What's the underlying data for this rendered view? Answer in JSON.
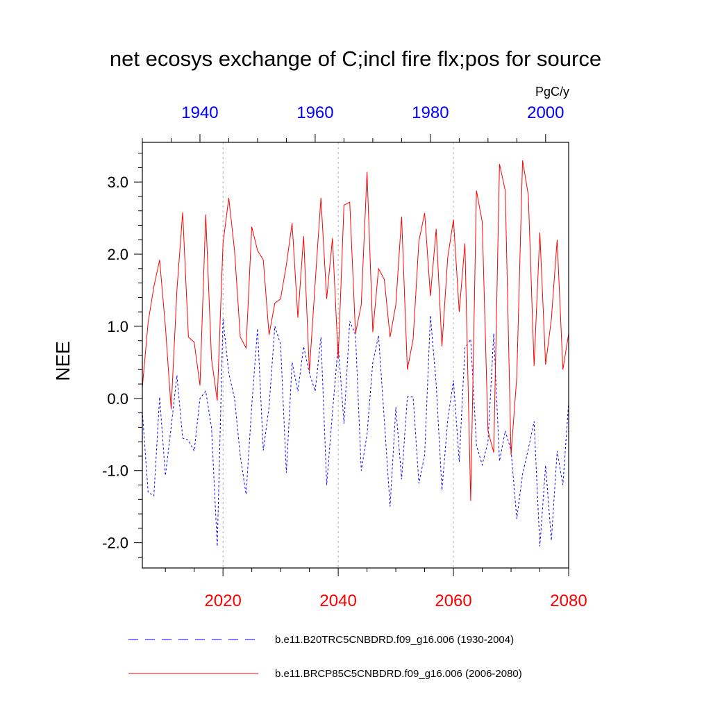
{
  "chart_data": {
    "type": "line",
    "title": "net ecosys exchange of C;incl fire flx;pos for source",
    "units": "PgC/y",
    "ylabel": "NEE",
    "ylim": [
      -2.35,
      3.55
    ],
    "yticks": [
      "3.0",
      "2.0",
      "1.0",
      "0.0",
      "-1.0",
      "-2.0"
    ],
    "ytick_values": [
      3,
      2,
      1,
      0,
      -1,
      -2
    ],
    "grid": "dotted vertical lines at bottom-axis ticks",
    "bottom_axis": {
      "range": [
        2006,
        2080
      ],
      "ticks": [
        "2020",
        "2040",
        "2060",
        "2080"
      ],
      "tick_values": [
        2020,
        2040,
        2060,
        2080
      ],
      "color": "#ff0000"
    },
    "top_axis": {
      "range": [
        1930,
        2004
      ],
      "ticks": [
        "1940",
        "1960",
        "1980",
        "2000"
      ],
      "tick_values": [
        1940,
        1960,
        1980,
        2000
      ],
      "color": "#0000ff"
    },
    "series": [
      {
        "name": "b.e11.B20TRC5CNBDRD.f09_g16.006 (1930-2004)",
        "axis": "top",
        "color": "#0000ff",
        "dash": "dashed",
        "x": [
          1930,
          1931,
          1932,
          1933,
          1934,
          1935,
          1936,
          1937,
          1938,
          1939,
          1940,
          1941,
          1942,
          1943,
          1944,
          1945,
          1946,
          1947,
          1948,
          1949,
          1950,
          1951,
          1952,
          1953,
          1954,
          1955,
          1956,
          1957,
          1958,
          1959,
          1960,
          1961,
          1962,
          1963,
          1964,
          1965,
          1966,
          1967,
          1968,
          1969,
          1970,
          1971,
          1972,
          1973,
          1974,
          1975,
          1976,
          1977,
          1978,
          1979,
          1980,
          1981,
          1982,
          1983,
          1984,
          1985,
          1986,
          1987,
          1988,
          1989,
          1990,
          1991,
          1992,
          1993,
          1994,
          1995,
          1996,
          1997,
          1998,
          1999,
          2000,
          2001,
          2002,
          2003,
          2004
        ],
        "values": [
          -0.18,
          -1.3,
          -1.35,
          0.02,
          -1.07,
          -0.4,
          0.32,
          -0.55,
          -0.58,
          -0.73,
          0.0,
          0.1,
          -0.4,
          -2.05,
          1.1,
          0.35,
          0.0,
          -0.8,
          -1.33,
          -0.1,
          0.97,
          -0.72,
          -0.12,
          1.0,
          0.75,
          -1.03,
          0.5,
          0.1,
          0.72,
          0.35,
          0.1,
          0.85,
          -1.2,
          -0.2,
          0.75,
          -0.35,
          1.07,
          0.88,
          -1.0,
          -0.5,
          0.5,
          0.87,
          -0.3,
          -1.5,
          -0.12,
          -1.12,
          0.02,
          0.02,
          -1.18,
          -0.78,
          1.15,
          0.2,
          -1.27,
          -0.3,
          0.25,
          -0.88,
          0.7,
          0.82,
          -0.65,
          -0.92,
          -0.6,
          0.9,
          -0.87,
          -0.45,
          -0.72,
          -1.67,
          -1.05,
          -0.7,
          -0.32,
          -2.05,
          -0.93,
          -1.97,
          -0.73,
          -1.2,
          -0.05
        ]
      },
      {
        "name": "b.e11.BRCP85C5CNBDRD.f09_g16.006 (2006-2080)",
        "axis": "bottom",
        "color": "#ff0000",
        "dash": "solid",
        "x": [
          2006,
          2007,
          2008,
          2009,
          2010,
          2011,
          2012,
          2013,
          2014,
          2015,
          2016,
          2017,
          2018,
          2019,
          2020,
          2021,
          2022,
          2023,
          2024,
          2025,
          2026,
          2027,
          2028,
          2029,
          2030,
          2031,
          2032,
          2033,
          2034,
          2035,
          2036,
          2037,
          2038,
          2039,
          2040,
          2041,
          2042,
          2043,
          2044,
          2045,
          2046,
          2047,
          2048,
          2049,
          2050,
          2051,
          2052,
          2053,
          2054,
          2055,
          2056,
          2057,
          2058,
          2059,
          2060,
          2061,
          2062,
          2063,
          2064,
          2065,
          2066,
          2067,
          2068,
          2069,
          2070,
          2071,
          2072,
          2073,
          2074,
          2075,
          2076,
          2077,
          2078,
          2079,
          2080
        ],
        "values": [
          0.15,
          1.05,
          1.55,
          1.92,
          1.0,
          -0.15,
          1.5,
          2.58,
          0.85,
          0.78,
          0.18,
          2.55,
          0.55,
          -0.03,
          2.15,
          2.78,
          2.05,
          0.85,
          0.7,
          2.38,
          2.05,
          1.92,
          0.88,
          1.32,
          1.38,
          1.85,
          2.43,
          1.12,
          2.25,
          0.38,
          1.6,
          2.78,
          1.38,
          2.22,
          0.55,
          2.68,
          2.72,
          0.9,
          1.3,
          3.14,
          0.92,
          1.8,
          1.65,
          0.85,
          1.3,
          2.52,
          0.4,
          0.82,
          2.18,
          2.57,
          1.42,
          2.35,
          0.72,
          1.95,
          2.48,
          1.2,
          2.15,
          -1.42,
          2.88,
          2.45,
          -0.45,
          -0.75,
          3.25,
          2.88,
          -0.78,
          0.3,
          3.3,
          2.82,
          0.45,
          2.3,
          0.47,
          1.1,
          2.2,
          0.4,
          0.9
        ]
      }
    ],
    "legend_position": "bottom"
  }
}
